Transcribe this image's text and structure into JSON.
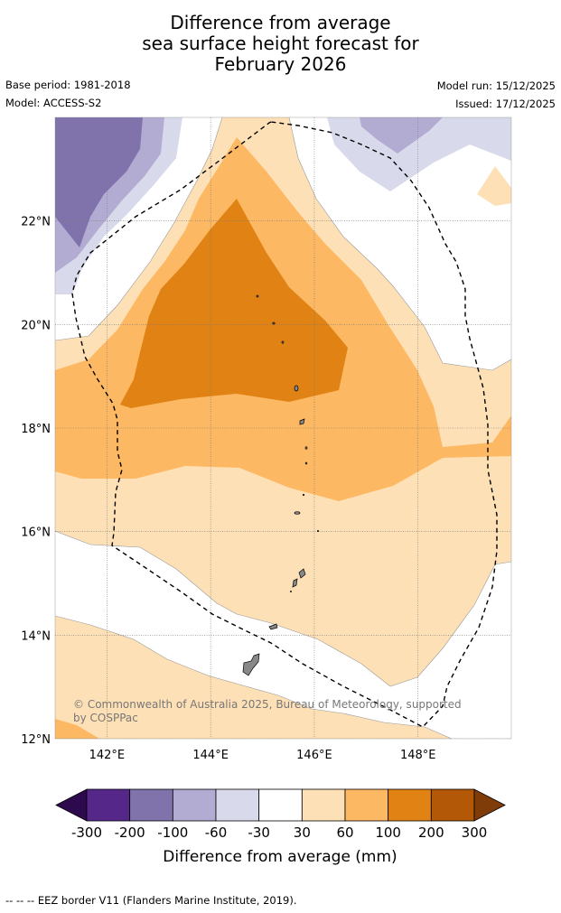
{
  "title": {
    "line1": "Difference from average",
    "line2": "sea surface height forecast for",
    "line3": "February 2026"
  },
  "meta": {
    "base_period": "Base period: 1981-2018",
    "model": "Model: ACCESS-S2",
    "model_run": "Model run: 15/12/2025",
    "issued": "Issued: 17/12/2025"
  },
  "map": {
    "lon_range": [
      141,
      149.8
    ],
    "lat_range": [
      12,
      24
    ],
    "lat_ticks": [
      {
        "value": 22,
        "label": "22°N"
      },
      {
        "value": 20,
        "label": "20°N"
      },
      {
        "value": 18,
        "label": "18°N"
      },
      {
        "value": 16,
        "label": "16°N"
      },
      {
        "value": 14,
        "label": "14°N"
      },
      {
        "value": 12,
        "label": "12°N"
      }
    ],
    "lon_ticks": [
      {
        "value": 142,
        "label": "142°E"
      },
      {
        "value": 144,
        "label": "144°E"
      },
      {
        "value": 146,
        "label": "146°E"
      },
      {
        "value": 148,
        "label": "148°E"
      }
    ],
    "credit_line1": "© Commonwealth of Australia 2025, Bureau of Meteorology, supported",
    "credit_line2": "by COSPPac"
  },
  "colorbar": {
    "ticks": [
      "-300",
      "-200",
      "-100",
      "-60",
      "-30",
      "30",
      "60",
      "100",
      "200",
      "300"
    ],
    "low_extend_color": "#2d0a4e",
    "high_extend_color": "#7f3b08",
    "colors": [
      "#542788",
      "#8073ac",
      "#b2abd2",
      "#d8daeb",
      "#ffffff",
      "#fee0b6",
      "#fdb863",
      "#e08214",
      "#b35806"
    ],
    "title": "Difference from average (mm)"
  },
  "footer": "--  --  -- EEZ border V11 (Flanders Marine Institute, 2019)."
}
